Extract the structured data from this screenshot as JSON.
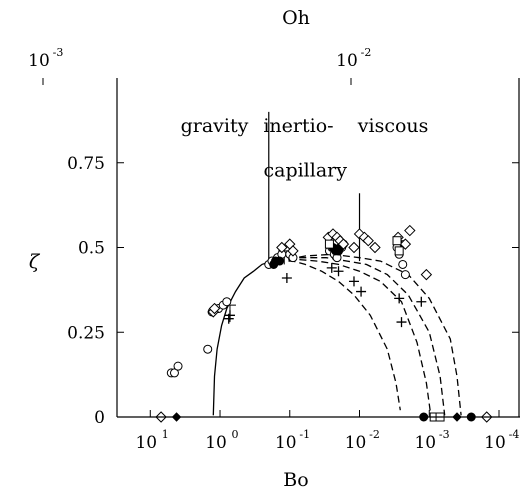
{
  "chart_data": {
    "type": "scatter",
    "x_axis_bottom": {
      "label": "Bo",
      "scale": "log",
      "reversed": true,
      "range": [
        30,
        5e-05
      ],
      "ticks": [
        {
          "value": 10,
          "base": "10",
          "exp": "1"
        },
        {
          "value": 1,
          "base": "10",
          "exp": "0"
        },
        {
          "value": 0.1,
          "base": "10",
          "exp": "-1"
        },
        {
          "value": 0.01,
          "base": "10",
          "exp": "-2"
        },
        {
          "value": 0.001,
          "base": "10",
          "exp": "-3"
        },
        {
          "value": 0.0001,
          "base": "10",
          "exp": "-4"
        }
      ]
    },
    "x_axis_top": {
      "label": "Oh",
      "scale": "log",
      "ticks": [
        {
          "value": 0.001,
          "base": "10",
          "exp": "-3"
        },
        {
          "value": 0.01,
          "base": "10",
          "exp": "-2"
        }
      ]
    },
    "y_axis": {
      "label": "ζ",
      "range": [
        0,
        1.0
      ],
      "ticks": [
        {
          "value": 0,
          "label": "0"
        },
        {
          "value": 0.25,
          "label": "0.25"
        },
        {
          "value": 0.5,
          "label": "0.5"
        },
        {
          "value": 0.75,
          "label": "0.75"
        }
      ]
    },
    "regions": [
      {
        "label": "gravity",
        "x": 1.2,
        "y": 0.84
      },
      {
        "label": "inertio-",
        "x": 0.075,
        "y": 0.84
      },
      {
        "label": "capillary",
        "x": 0.06,
        "y": 0.71
      },
      {
        "label": "viscous",
        "x": 0.0033,
        "y": 0.84
      }
    ],
    "region_boundaries": [
      {
        "x": 0.2,
        "y": [
          0.46,
          0.9
        ]
      },
      {
        "x": 0.01,
        "y": [
          0.46,
          0.66
        ]
      }
    ],
    "curves": [
      {
        "style": "solid",
        "points": [
          [
            1.25,
            0.005
          ],
          [
            1.2,
            0.12
          ],
          [
            1.1,
            0.2
          ],
          [
            0.95,
            0.27
          ],
          [
            0.8,
            0.32
          ],
          [
            0.6,
            0.37
          ],
          [
            0.45,
            0.41
          ],
          [
            0.33,
            0.43
          ],
          [
            0.25,
            0.45
          ],
          [
            0.2,
            0.457
          ],
          [
            0.15,
            0.46
          ]
        ]
      },
      {
        "style": "dashed",
        "points": [
          [
            0.15,
            0.46
          ],
          [
            0.09,
            0.46
          ],
          [
            0.06,
            0.45
          ],
          [
            0.035,
            0.43
          ],
          [
            0.02,
            0.4
          ],
          [
            0.012,
            0.36
          ],
          [
            0.007,
            0.3
          ],
          [
            0.004,
            0.2
          ],
          [
            0.003,
            0.1
          ],
          [
            0.0026,
            0.02
          ]
        ]
      },
      {
        "style": "dashed",
        "points": [
          [
            0.15,
            0.46
          ],
          [
            0.08,
            0.465
          ],
          [
            0.04,
            0.46
          ],
          [
            0.02,
            0.45
          ],
          [
            0.01,
            0.43
          ],
          [
            0.005,
            0.4
          ],
          [
            0.0025,
            0.34
          ],
          [
            0.0015,
            0.22
          ],
          [
            0.0011,
            0.1
          ],
          [
            0.00095,
            0.005
          ]
        ]
      },
      {
        "style": "dashed",
        "points": [
          [
            0.15,
            0.46
          ],
          [
            0.07,
            0.47
          ],
          [
            0.03,
            0.47
          ],
          [
            0.015,
            0.46
          ],
          [
            0.008,
            0.45
          ],
          [
            0.004,
            0.42
          ],
          [
            0.002,
            0.36
          ],
          [
            0.001,
            0.25
          ],
          [
            0.0007,
            0.12
          ],
          [
            0.0006,
            0.005
          ]
        ]
      },
      {
        "style": "dashed",
        "points": [
          [
            0.15,
            0.46
          ],
          [
            0.06,
            0.475
          ],
          [
            0.025,
            0.48
          ],
          [
            0.01,
            0.47
          ],
          [
            0.005,
            0.46
          ],
          [
            0.002,
            0.42
          ],
          [
            0.001,
            0.35
          ],
          [
            0.0005,
            0.23
          ],
          [
            0.0004,
            0.12
          ],
          [
            0.00035,
            0.005
          ]
        ]
      }
    ],
    "errorbars": [
      {
        "x": 0.72,
        "ylo": 0.28,
        "yhi": 0.33
      },
      {
        "x": 0.12,
        "ylo": 0.45,
        "yhi": 0.49
      },
      {
        "x": 0.0025,
        "ylo": 0.47,
        "yhi": 0.52
      }
    ],
    "series": [
      {
        "marker": "circle",
        "points": [
          [
            5,
            0.13
          ],
          [
            4.5,
            0.13
          ],
          [
            4,
            0.15
          ],
          [
            1.5,
            0.2
          ],
          [
            1.3,
            0.31
          ],
          [
            1.05,
            0.32
          ],
          [
            0.9,
            0.33
          ],
          [
            0.8,
            0.34
          ],
          [
            0.2,
            0.45
          ],
          [
            0.18,
            0.46
          ],
          [
            0.15,
            0.47
          ],
          [
            0.13,
            0.48
          ],
          [
            0.1,
            0.48
          ],
          [
            0.09,
            0.47
          ],
          [
            0.027,
            0.49
          ],
          [
            0.025,
            0.5
          ],
          [
            0.023,
            0.48
          ],
          [
            0.021,
            0.47
          ],
          [
            0.02,
            0.49
          ],
          [
            0.018,
            0.5
          ],
          [
            0.0029,
            0.5
          ],
          [
            0.0027,
            0.48
          ],
          [
            0.0024,
            0.45
          ],
          [
            0.0022,
            0.42
          ]
        ]
      },
      {
        "marker": "filled-circle",
        "points": [
          [
            0.17,
            0.45
          ],
          [
            0.16,
            0.46
          ],
          [
            0.14,
            0.46
          ],
          [
            0.024,
            0.5
          ],
          [
            0.022,
            0.49
          ],
          [
            0.02,
            0.49
          ],
          [
            0.019,
            0.5
          ],
          [
            0.017,
            0.51
          ],
          [
            0.0012,
            0.0
          ],
          [
            0.0008,
            0.0
          ],
          [
            0.00025,
            0.0
          ]
        ]
      },
      {
        "marker": "diamond",
        "points": [
          [
            7,
            0.0
          ],
          [
            1.25,
            0.31
          ],
          [
            1.2,
            0.32
          ],
          [
            0.13,
            0.5
          ],
          [
            0.1,
            0.51
          ],
          [
            0.09,
            0.49
          ],
          [
            0.028,
            0.53
          ],
          [
            0.024,
            0.54
          ],
          [
            0.021,
            0.53
          ],
          [
            0.019,
            0.52
          ],
          [
            0.017,
            0.51
          ],
          [
            0.012,
            0.5
          ],
          [
            0.01,
            0.54
          ],
          [
            0.0085,
            0.53
          ],
          [
            0.0075,
            0.52
          ],
          [
            0.006,
            0.5
          ],
          [
            0.0028,
            0.53
          ],
          [
            0.0022,
            0.51
          ],
          [
            0.0019,
            0.55
          ],
          [
            0.0011,
            0.42
          ],
          [
            0.00015,
            0.0
          ]
        ]
      },
      {
        "marker": "plus",
        "points": [
          [
            0.75,
            0.29
          ],
          [
            0.72,
            0.3
          ],
          [
            0.11,
            0.41
          ],
          [
            0.025,
            0.44
          ],
          [
            0.02,
            0.43
          ],
          [
            0.012,
            0.4
          ],
          [
            0.0095,
            0.37
          ],
          [
            0.0027,
            0.35
          ],
          [
            0.0025,
            0.28
          ],
          [
            0.0013,
            0.34
          ]
        ]
      },
      {
        "marker": "square",
        "points": [
          [
            0.027,
            0.51
          ],
          [
            0.0029,
            0.52
          ],
          [
            0.0027,
            0.49
          ],
          [
            0.00085,
            0.0
          ],
          [
            0.0007,
            0.0
          ]
        ]
      },
      {
        "marker": "filled-diamond",
        "points": [
          [
            4.2,
            0.0
          ],
          [
            0.0004,
            0.0
          ]
        ]
      }
    ]
  }
}
